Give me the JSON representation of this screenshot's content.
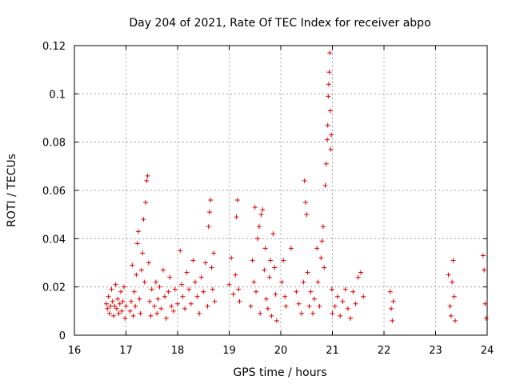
{
  "chart_data": {
    "type": "scatter",
    "title": "Day 204 of 2021, Rate Of TEC Index for receiver abpo",
    "xlabel": "GPS time / hours",
    "ylabel": "ROTI / TECUs",
    "xlim": [
      16,
      24
    ],
    "ylim": [
      0,
      0.12
    ],
    "x_ticks": [
      "16",
      "17",
      "18",
      "19",
      "20",
      "21",
      "22",
      "23",
      "24"
    ],
    "y_ticks": [
      "0",
      "0.02",
      "0.04",
      "0.06",
      "0.08",
      "0.1",
      "0.12"
    ],
    "grid": true,
    "marker": "+",
    "color": "#dd0000",
    "series": [
      {
        "name": "ROTI",
        "points": [
          [
            16.62,
            0.013
          ],
          [
            16.64,
            0.011
          ],
          [
            16.66,
            0.016
          ],
          [
            16.68,
            0.009
          ],
          [
            16.7,
            0.012
          ],
          [
            16.72,
            0.019
          ],
          [
            16.74,
            0.014
          ],
          [
            16.76,
            0.008
          ],
          [
            16.78,
            0.012
          ],
          [
            16.8,
            0.021
          ],
          [
            16.82,
            0.011
          ],
          [
            16.84,
            0.015
          ],
          [
            16.86,
            0.009
          ],
          [
            16.88,
            0.013
          ],
          [
            16.9,
            0.018
          ],
          [
            16.92,
            0.01
          ],
          [
            16.94,
            0.014
          ],
          [
            16.96,
            0.02
          ],
          [
            16.98,
            0.007
          ],
          [
            17.0,
            0.012
          ],
          [
            17.08,
            0.01
          ],
          [
            17.1,
            0.014
          ],
          [
            17.12,
            0.029
          ],
          [
            17.14,
            0.008
          ],
          [
            17.16,
            0.018
          ],
          [
            17.18,
            0.012
          ],
          [
            17.2,
            0.025
          ],
          [
            17.22,
            0.038
          ],
          [
            17.24,
            0.043
          ],
          [
            17.26,
            0.015
          ],
          [
            17.28,
            0.009
          ],
          [
            17.3,
            0.027
          ],
          [
            17.32,
            0.034
          ],
          [
            17.34,
            0.048
          ],
          [
            17.36,
            0.022
          ],
          [
            17.38,
            0.055
          ],
          [
            17.4,
            0.064
          ],
          [
            17.42,
            0.066
          ],
          [
            17.44,
            0.03
          ],
          [
            17.46,
            0.014
          ],
          [
            17.48,
            0.008
          ],
          [
            17.5,
            0.019
          ],
          [
            17.55,
            0.012
          ],
          [
            17.58,
            0.022
          ],
          [
            17.6,
            0.009
          ],
          [
            17.62,
            0.015
          ],
          [
            17.65,
            0.02
          ],
          [
            17.68,
            0.011
          ],
          [
            17.72,
            0.027
          ],
          [
            17.75,
            0.016
          ],
          [
            17.78,
            0.007
          ],
          [
            17.82,
            0.018
          ],
          [
            17.85,
            0.024
          ],
          [
            17.88,
            0.012
          ],
          [
            17.92,
            0.01
          ],
          [
            17.95,
            0.019
          ],
          [
            18.0,
            0.013
          ],
          [
            18.05,
            0.035
          ],
          [
            18.08,
            0.021
          ],
          [
            18.1,
            0.016
          ],
          [
            18.14,
            0.011
          ],
          [
            18.18,
            0.026
          ],
          [
            18.22,
            0.019
          ],
          [
            18.26,
            0.013
          ],
          [
            18.3,
            0.031
          ],
          [
            18.34,
            0.022
          ],
          [
            18.38,
            0.016
          ],
          [
            18.42,
            0.009
          ],
          [
            18.46,
            0.024
          ],
          [
            18.5,
            0.018
          ],
          [
            18.54,
            0.03
          ],
          [
            18.58,
            0.012
          ],
          [
            18.6,
            0.045
          ],
          [
            18.62,
            0.051
          ],
          [
            18.64,
            0.056
          ],
          [
            18.66,
            0.028
          ],
          [
            18.68,
            0.019
          ],
          [
            18.7,
            0.034
          ],
          [
            18.72,
            0.014
          ],
          [
            19.0,
            0.021
          ],
          [
            19.04,
            0.032
          ],
          [
            19.08,
            0.017
          ],
          [
            19.12,
            0.025
          ],
          [
            19.14,
            0.049
          ],
          [
            19.16,
            0.056
          ],
          [
            19.18,
            0.019
          ],
          [
            19.2,
            0.014
          ],
          [
            19.42,
            0.012
          ],
          [
            19.45,
            0.031
          ],
          [
            19.48,
            0.022
          ],
          [
            19.5,
            0.053
          ],
          [
            19.52,
            0.018
          ],
          [
            19.55,
            0.04
          ],
          [
            19.58,
            0.045
          ],
          [
            19.6,
            0.009
          ],
          [
            19.62,
            0.05
          ],
          [
            19.65,
            0.052
          ],
          [
            19.68,
            0.027
          ],
          [
            19.7,
            0.036
          ],
          [
            19.72,
            0.015
          ],
          [
            19.75,
            0.011
          ],
          [
            19.78,
            0.024
          ],
          [
            19.8,
            0.031
          ],
          [
            19.82,
            0.008
          ],
          [
            19.85,
            0.042
          ],
          [
            19.88,
            0.028
          ],
          [
            19.9,
            0.017
          ],
          [
            19.92,
            0.006
          ],
          [
            20.02,
            0.022
          ],
          [
            20.05,
            0.031
          ],
          [
            20.08,
            0.016
          ],
          [
            20.1,
            0.012
          ],
          [
            20.2,
            0.036
          ],
          [
            20.3,
            0.018
          ],
          [
            20.35,
            0.013
          ],
          [
            20.4,
            0.009
          ],
          [
            20.44,
            0.022
          ],
          [
            20.46,
            0.064
          ],
          [
            20.48,
            0.055
          ],
          [
            20.5,
            0.05
          ],
          [
            20.52,
            0.026
          ],
          [
            20.55,
            0.012
          ],
          [
            20.58,
            0.018
          ],
          [
            20.62,
            0.009
          ],
          [
            20.65,
            0.015
          ],
          [
            20.7,
            0.036
          ],
          [
            20.72,
            0.022
          ],
          [
            20.75,
            0.012
          ],
          [
            20.78,
            0.032
          ],
          [
            20.8,
            0.039
          ],
          [
            20.82,
            0.045
          ],
          [
            20.84,
            0.028
          ],
          [
            20.86,
            0.062
          ],
          [
            20.88,
            0.071
          ],
          [
            20.9,
            0.081
          ],
          [
            20.91,
            0.087
          ],
          [
            20.92,
            0.099
          ],
          [
            20.93,
            0.104
          ],
          [
            20.94,
            0.109
          ],
          [
            20.95,
            0.117
          ],
          [
            20.96,
            0.093
          ],
          [
            20.97,
            0.077
          ],
          [
            20.98,
            0.083
          ],
          [
            20.99,
            0.019
          ],
          [
            21.0,
            0.009
          ],
          [
            21.05,
            0.012
          ],
          [
            21.1,
            0.016
          ],
          [
            21.15,
            0.008
          ],
          [
            21.2,
            0.014
          ],
          [
            21.25,
            0.019
          ],
          [
            21.3,
            0.011
          ],
          [
            21.35,
            0.007
          ],
          [
            21.4,
            0.018
          ],
          [
            21.45,
            0.013
          ],
          [
            21.5,
            0.024
          ],
          [
            21.55,
            0.026
          ],
          [
            21.6,
            0.016
          ],
          [
            22.12,
            0.018
          ],
          [
            22.14,
            0.011
          ],
          [
            22.16,
            0.006
          ],
          [
            22.18,
            0.014
          ],
          [
            23.25,
            0.025
          ],
          [
            23.28,
            0.012
          ],
          [
            23.3,
            0.008
          ],
          [
            23.32,
            0.022
          ],
          [
            23.34,
            0.031
          ],
          [
            23.36,
            0.016
          ],
          [
            23.38,
            0.006
          ],
          [
            23.92,
            0.033
          ],
          [
            23.94,
            0.027
          ],
          [
            23.96,
            0.013
          ],
          [
            23.98,
            0.007
          ]
        ]
      }
    ]
  }
}
